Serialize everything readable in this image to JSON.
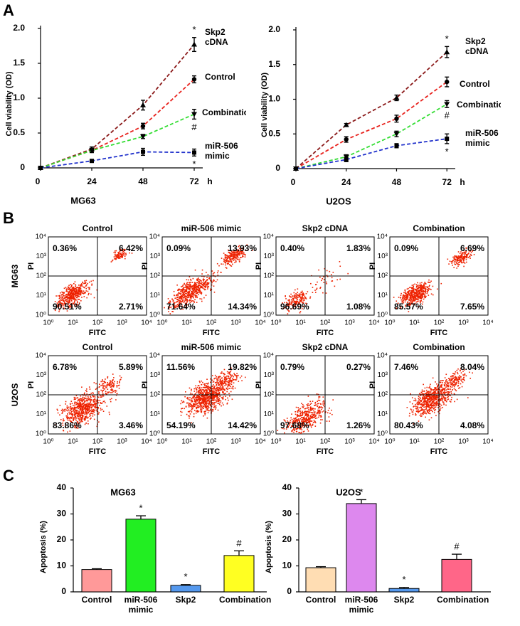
{
  "panel_labels": [
    "A",
    "B",
    "C"
  ],
  "chart_data": [
    {
      "type": "line",
      "xlabel": "MG63",
      "x_unit": "h",
      "ylabel": "Cell viability (OD)",
      "x": [
        0,
        24,
        48,
        72
      ],
      "xlim": [
        0,
        76
      ],
      "xticks": [
        0,
        24,
        48,
        72
      ],
      "ylim": [
        0,
        2
      ],
      "yticks": [
        0,
        0.5,
        {
          "value": 1,
          "label": "1.0"
        },
        1.5,
        {
          "value": 2,
          "label": "2.0"
        }
      ],
      "line_style": "dashed",
      "series": [
        {
          "name": "Skp2 cDNA",
          "color": "#8b1a1a",
          "marker": "triangle",
          "values": [
            0,
            0.27,
            0.9,
            1.77
          ],
          "errors": [
            0,
            0.03,
            0.07,
            0.1
          ],
          "annotation": "*"
        },
        {
          "name": "Control",
          "color": "#e8231e",
          "marker": "circle",
          "values": [
            0,
            0.25,
            0.6,
            1.27
          ],
          "errors": [
            0,
            0.03,
            0.04,
            0.05
          ]
        },
        {
          "name": "Combination",
          "color": "#33dd33",
          "marker": "triangle-down",
          "values": [
            0,
            0.25,
            0.45,
            0.77
          ],
          "errors": [
            0,
            0.03,
            0.03,
            0.07
          ],
          "annotation": "#"
        },
        {
          "name": "miR-506 mimic",
          "color": "#2233cc",
          "marker": "square",
          "values": [
            0,
            0.1,
            0.23,
            0.22
          ],
          "errors": [
            0,
            0.02,
            0.05,
            0.05
          ],
          "annotation": "*"
        }
      ]
    },
    {
      "type": "line",
      "xlabel": "U2OS",
      "x_unit": "h",
      "ylabel": "Cell viability (OD)",
      "x": [
        0,
        24,
        48,
        72
      ],
      "xlim": [
        0,
        76
      ],
      "xticks": [
        0,
        24,
        48,
        72
      ],
      "ylim": [
        0,
        2
      ],
      "yticks": [
        0,
        0.5,
        {
          "value": 1,
          "label": "1.0"
        },
        1.5,
        {
          "value": 2,
          "label": "2.0"
        }
      ],
      "line_style": "dashed",
      "series": [
        {
          "name": "Skp2 cDNA",
          "color": "#8b1a1a",
          "marker": "triangle",
          "values": [
            0,
            0.63,
            1.02,
            1.68
          ],
          "errors": [
            0,
            0.02,
            0.04,
            0.08
          ],
          "annotation": "*"
        },
        {
          "name": "Control",
          "color": "#e8231e",
          "marker": "circle",
          "values": [
            0,
            0.42,
            0.72,
            1.25
          ],
          "errors": [
            0,
            0.04,
            0.05,
            0.07
          ]
        },
        {
          "name": "Combination",
          "color": "#33dd33",
          "marker": "triangle-down",
          "values": [
            0,
            0.17,
            0.5,
            0.93
          ],
          "errors": [
            0,
            0.03,
            0.04,
            0.05
          ],
          "annotation": "#"
        },
        {
          "name": "miR-506 mimic",
          "color": "#2233cc",
          "marker": "square",
          "values": [
            0,
            0.13,
            0.33,
            0.43
          ],
          "errors": [
            0,
            0.03,
            0.03,
            0.07
          ],
          "annotation": "*"
        }
      ]
    },
    {
      "type": "bar",
      "title": "MG63",
      "ylabel": "Apoptosis (%)",
      "categories": [
        "Control",
        "miR-506 mimic",
        "Skp2",
        "Combination"
      ],
      "values": [
        8.6,
        28,
        2.5,
        14
      ],
      "errors": [
        0.3,
        1.3,
        0.3,
        1.8
      ],
      "colors": [
        "#ff9999",
        "#22ee22",
        "#5599ee",
        "#ffff22"
      ],
      "annotations": [
        null,
        "*",
        "*",
        "#"
      ],
      "ylim": [
        0,
        40
      ],
      "yticks": [
        0,
        10,
        20,
        30,
        40
      ]
    },
    {
      "type": "bar",
      "title": "U2OS",
      "ylabel": "Apoptosis (%)",
      "categories": [
        "Control",
        "miR-506 mimic",
        "Skp2",
        "Combination"
      ],
      "values": [
        9.3,
        34,
        1.3,
        12.5
      ],
      "errors": [
        0.4,
        1.5,
        0.4,
        2
      ],
      "colors": [
        "#ffddb3",
        "#dd88ee",
        "#5599ee",
        "#ff6688"
      ],
      "annotations": [
        null,
        "*",
        "*",
        "#"
      ],
      "ylim": [
        0,
        40
      ],
      "yticks": [
        0,
        10,
        20,
        30,
        40
      ]
    }
  ],
  "flow": {
    "x_label": "FITC",
    "y_label": "PI",
    "axis_ticks": [
      "10⁰",
      "10¹",
      "10²",
      "10³",
      "10⁴"
    ],
    "columns": [
      "Control",
      "miR-506 mimic",
      "Skp2 cDNA",
      "Combination"
    ],
    "rows": [
      {
        "label": "MG63",
        "quadrants": [
          [
            "0.36%",
            "6.42%",
            "90.51%",
            "2.71%"
          ],
          [
            "0.09%",
            "13.93%",
            "71.64%",
            "14.34%"
          ],
          [
            "0.40%",
            "1.83%",
            "96.69%",
            "1.08%"
          ],
          [
            "0.09%",
            "6.69%",
            "85.57%",
            "7.65%"
          ]
        ]
      },
      {
        "label": "U2OS",
        "quadrants": [
          [
            "6.78%",
            "5.89%",
            "83.86%",
            "3.46%"
          ],
          [
            "11.56%",
            "19.82%",
            "54.19%",
            "14.42%"
          ],
          [
            "0.79%",
            "0.27%",
            "97.68%",
            "1.26%"
          ],
          [
            "7.46%",
            "8.04%",
            "80.43%",
            "4.08%"
          ]
        ]
      }
    ]
  }
}
